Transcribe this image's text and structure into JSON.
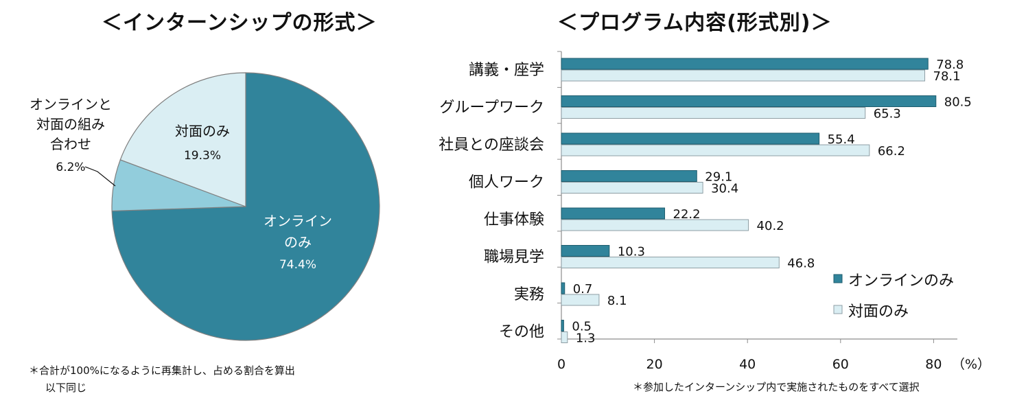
{
  "left_title": "＜インターンシップの形式＞",
  "right_title": "＜プログラム内容(形式別)＞",
  "left_note": [
    "＊合計が100%になるように再集計し、占める割合を算出",
    "以下同じ"
  ],
  "right_note": "＊参加したインターンシップ内で実施されたものをすべて選択",
  "colors": {
    "online": "#31849b",
    "combo": "#92cddc",
    "inperson": "#daeef3",
    "border": "#7f7f7f"
  },
  "chart_data": [
    {
      "type": "pie",
      "title": "＜インターンシップの形式＞",
      "slices": [
        {
          "name": "オンラインのみ",
          "label_lines": [
            "オンライン",
            "のみ"
          ],
          "pct_label": "74.4%",
          "value": 74.4
        },
        {
          "name": "オンラインと対面の組み合わせ",
          "label_lines": [
            "オンラインと",
            "対面の組み",
            "合わせ"
          ],
          "pct_label": "6.2%",
          "value": 6.2
        },
        {
          "name": "対面のみ",
          "label_lines": [
            "対面のみ"
          ],
          "pct_label": "19.3%",
          "value": 19.3
        }
      ]
    },
    {
      "type": "bar",
      "orientation": "horizontal",
      "title": "＜プログラム内容(形式別)＞",
      "categories": [
        "講義・座学",
        "グループワーク",
        "社員との座談会",
        "個人ワーク",
        "仕事体験",
        "職場見学",
        "実務",
        "その他"
      ],
      "series": [
        {
          "name": "オンラインのみ",
          "values": [
            78.8,
            80.5,
            55.4,
            29.1,
            22.2,
            10.3,
            0.7,
            0.5
          ]
        },
        {
          "name": "対面のみ",
          "values": [
            78.1,
            65.3,
            66.2,
            30.4,
            40.2,
            46.8,
            8.1,
            1.3
          ]
        }
      ],
      "xlim": [
        0,
        85
      ],
      "xticks": [
        0,
        20,
        40,
        60,
        80
      ],
      "unit": "（%）",
      "legend": "bottom-right"
    }
  ]
}
